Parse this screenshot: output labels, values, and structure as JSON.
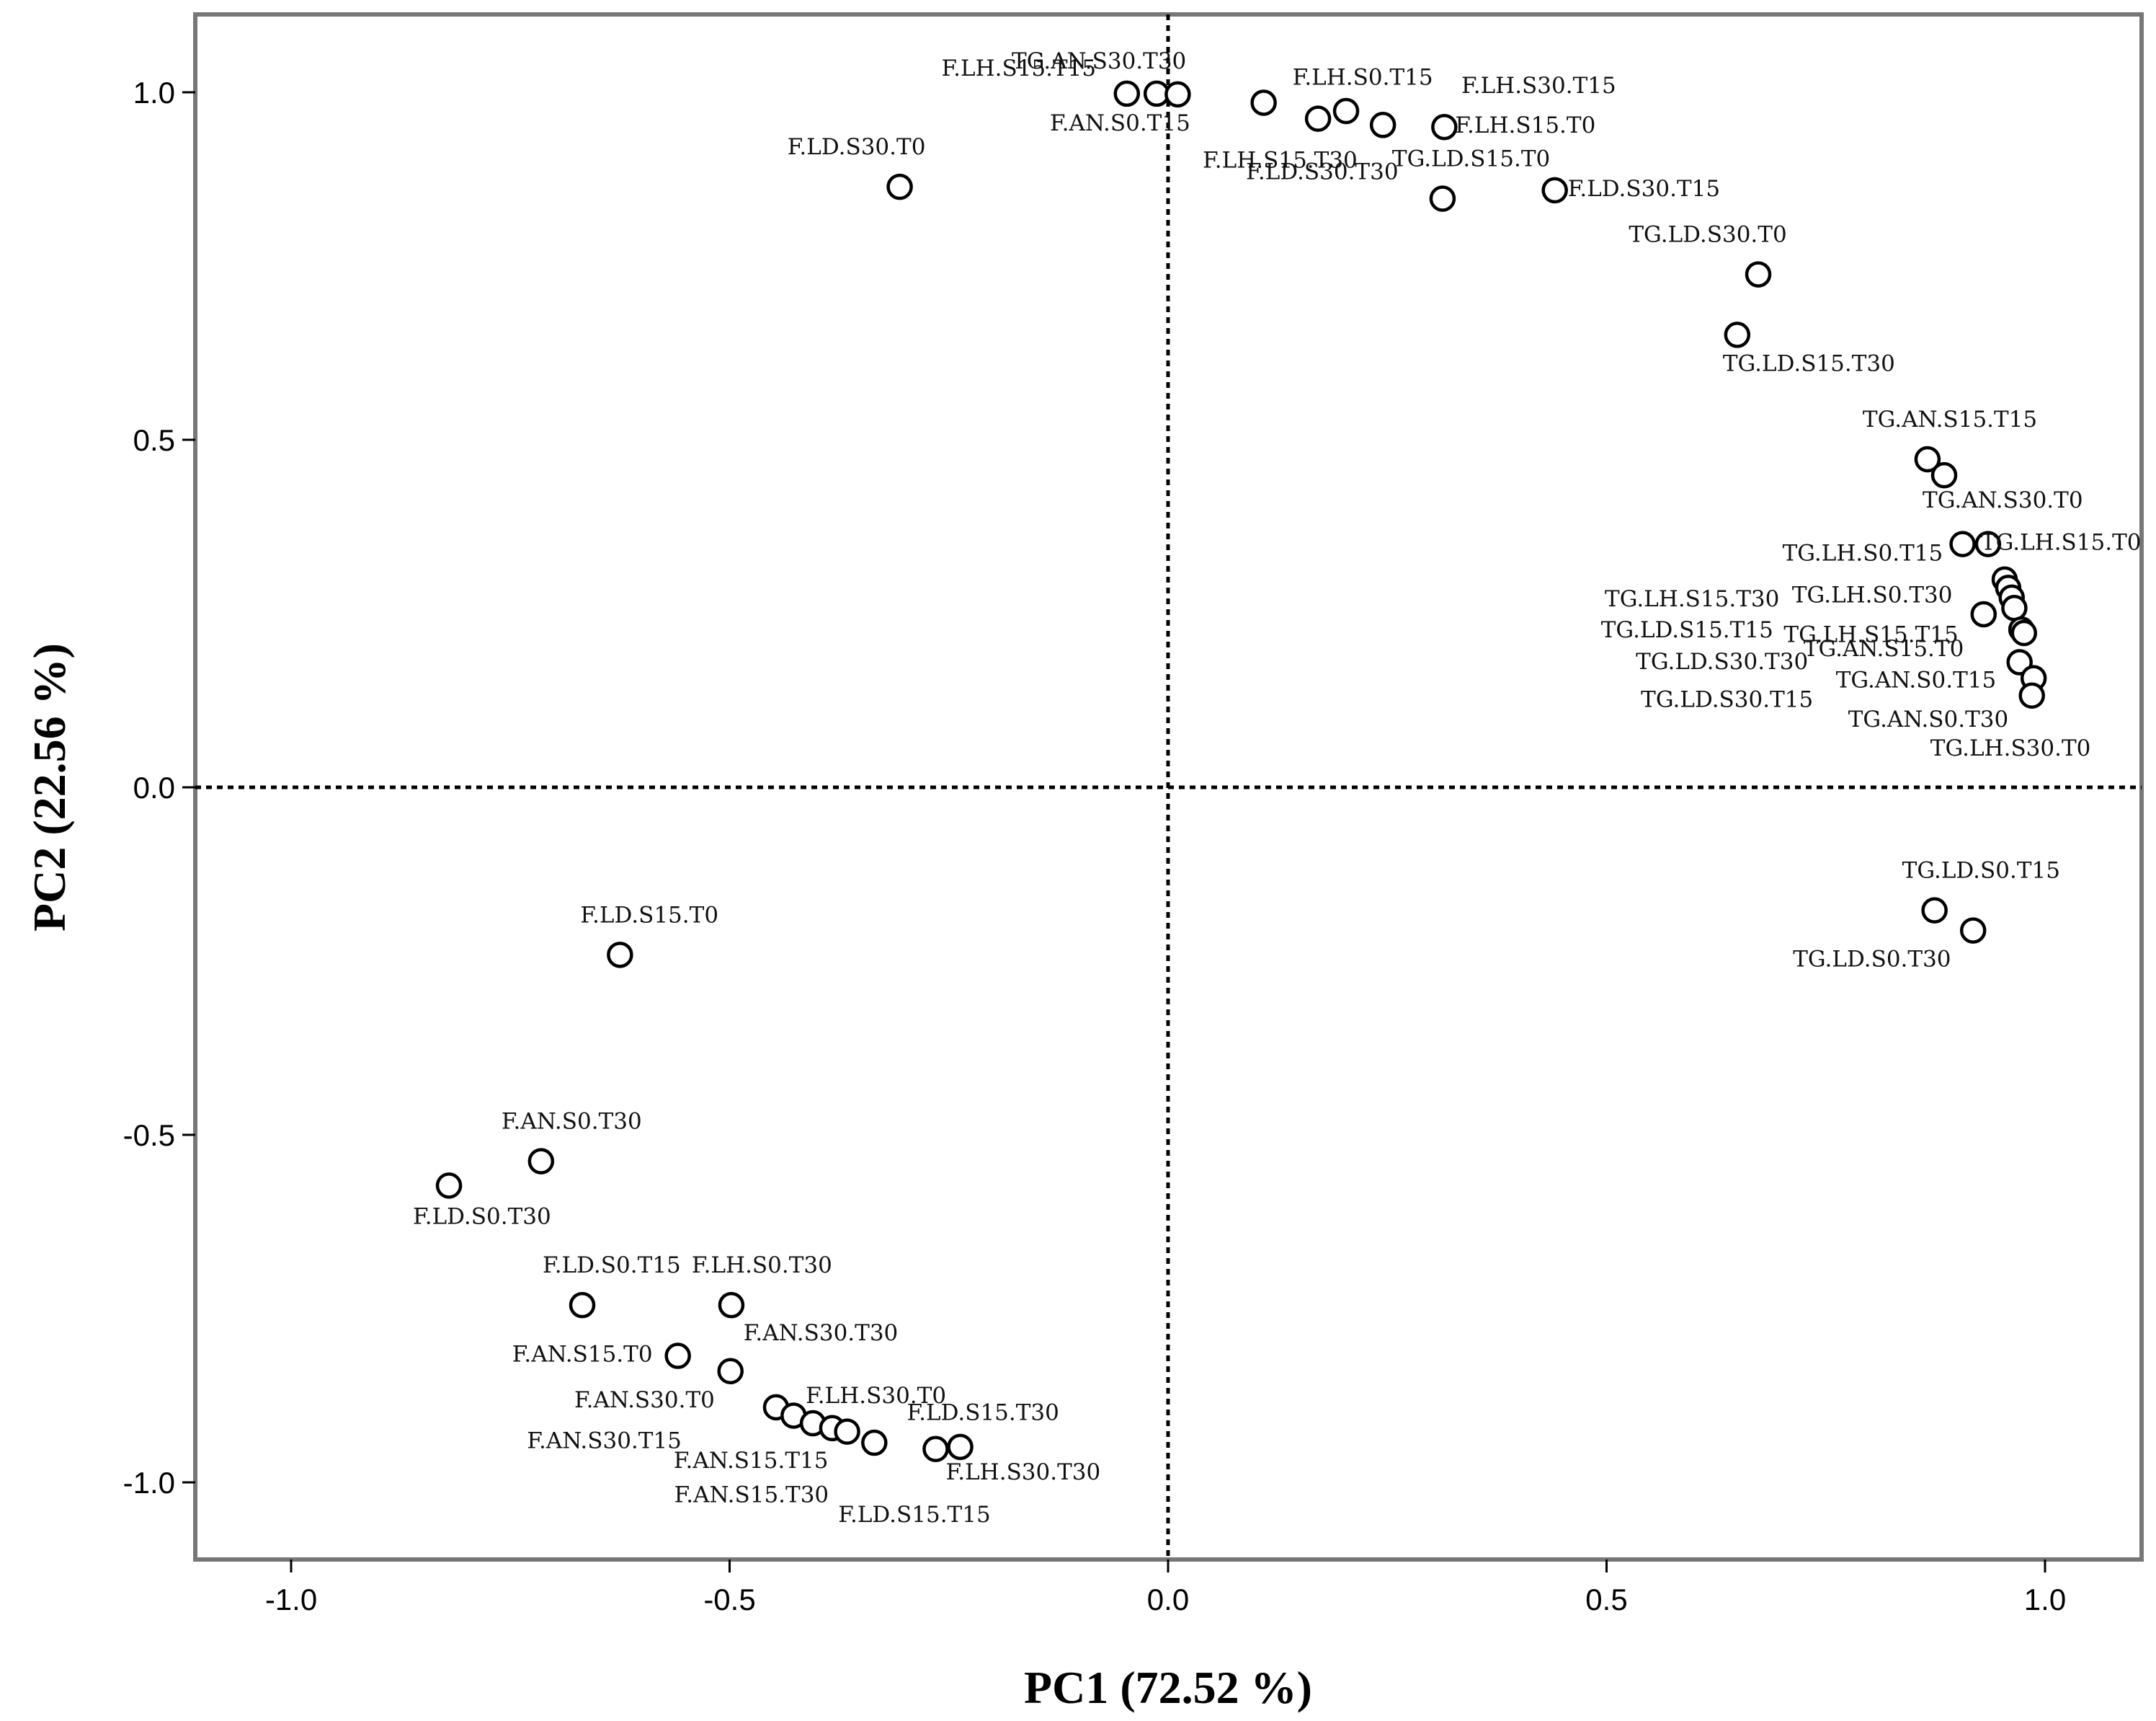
{
  "chart_data": {
    "type": "scatter",
    "title": "",
    "xlabel": "PC1 (72.52 %)",
    "ylabel": "PC2 (22.56 %)",
    "xlim": [
      -1.11,
      1.11
    ],
    "ylim": [
      -1.11,
      1.11
    ],
    "xticks": [
      -1.0,
      -0.5,
      0.0,
      0.5,
      1.0
    ],
    "xtick_labels": [
      "-1.0",
      "-0.5",
      "0.0",
      "0.5",
      "1.0"
    ],
    "yticks": [
      1.0,
      0.5,
      0.0,
      -0.5,
      -1.0
    ],
    "ytick_labels": [
      "1.0",
      "0.5",
      "0.0",
      "-0.5",
      "-1.0"
    ],
    "reference_lines": {
      "x": 0,
      "y": 0,
      "style": "dotted"
    },
    "grid": false,
    "legend": "none",
    "points": [
      {
        "label": "TG.AN.S30.T30",
        "x": -0.013,
        "y": 0.998
      },
      {
        "label": "F.LH.S15.T15",
        "x": -0.047,
        "y": 0.998
      },
      {
        "label": "F.AN.S0.T15",
        "x": 0.011,
        "y": 0.997
      },
      {
        "label": "F.LH.S0.T15",
        "x": 0.109,
        "y": 0.985
      },
      {
        "label": "F.LH.S15.T30",
        "x": 0.171,
        "y": 0.962
      },
      {
        "label": "F.LH.S30.T15",
        "x": 0.203,
        "y": 0.973
      },
      {
        "label": "F.LD.S30.T30",
        "x": 0.245,
        "y": 0.953
      },
      {
        "label": "F.LH.S15.T0",
        "x": 0.315,
        "y": 0.95
      },
      {
        "label": "TG.LD.S15.T0",
        "x": 0.313,
        "y": 0.847
      },
      {
        "label": "F.LD.S30.T15",
        "x": 0.441,
        "y": 0.859
      },
      {
        "label": "F.LD.S30.T0",
        "x": -0.306,
        "y": 0.864
      },
      {
        "label": "TG.LD.S30.T0",
        "x": 0.673,
        "y": 0.738
      },
      {
        "label": "TG.LD.S15.T30",
        "x": 0.649,
        "y": 0.651
      },
      {
        "label": "TG.AN.S15.T15",
        "x": 0.866,
        "y": 0.472
      },
      {
        "label": "TG.AN.S30.T0",
        "x": 0.885,
        "y": 0.449
      },
      {
        "label": "TG.LH.S0.T15",
        "x": 0.906,
        "y": 0.35
      },
      {
        "label": "TG.LH.S15.T0",
        "x": 0.935,
        "y": 0.35
      },
      {
        "label": "TG.LH.S15.T30",
        "x": 0.954,
        "y": 0.299
      },
      {
        "label": "TG.LH.S0.T30",
        "x": 0.958,
        "y": 0.287
      },
      {
        "label": "TG.LD.S15.T15",
        "x": 0.962,
        "y": 0.273
      },
      {
        "label": "TG.LH.S15.T15",
        "x": 0.965,
        "y": 0.258
      },
      {
        "label": "TG.AN.S15.T0",
        "x": 0.93,
        "y": 0.249
      },
      {
        "label": "TG.LD.S30.T30",
        "x": 0.973,
        "y": 0.227
      },
      {
        "label": "TG.AN.S0.T15",
        "x": 0.971,
        "y": 0.18
      },
      {
        "label": "TG.LD.S30.T15",
        "x": 0.987,
        "y": 0.157
      },
      {
        "label": "TG.AN.S0.T30",
        "x": 0.985,
        "y": 0.132
      },
      {
        "label": "TG.LH.S30.T0",
        "x": 0.976,
        "y": 0.222
      },
      {
        "label": "TG.LD.S0.T15",
        "x": 0.874,
        "y": -0.177
      },
      {
        "label": "TG.LD.S0.T30",
        "x": 0.918,
        "y": -0.206
      },
      {
        "label": "F.LD.S15.T0",
        "x": -0.625,
        "y": -0.241
      },
      {
        "label": "F.AN.S0.T30",
        "x": -0.715,
        "y": -0.538
      },
      {
        "label": "F.LD.S0.T30",
        "x": -0.82,
        "y": -0.573
      },
      {
        "label": "F.LD.S0.T15",
        "x": -0.668,
        "y": -0.745
      },
      {
        "label": "F.LH.S0.T30",
        "x": -0.498,
        "y": -0.745
      },
      {
        "label": "F.AN.S15.T0",
        "x": -0.559,
        "y": -0.818
      },
      {
        "label": "F.AN.S30.T30",
        "x": -0.499,
        "y": -0.84
      },
      {
        "label": "F.AN.S30.T0",
        "x": -0.447,
        "y": -0.892
      },
      {
        "label": "F.AN.S30.T15",
        "x": -0.427,
        "y": -0.904
      },
      {
        "label": "F.LH.S30.T0",
        "x": -0.405,
        "y": -0.915
      },
      {
        "label": "F.AN.S15.T15",
        "x": -0.383,
        "y": -0.922
      },
      {
        "label": "F.AN.S15.T30",
        "x": -0.366,
        "y": -0.927
      },
      {
        "label": "F.LD.S15.T15",
        "x": -0.335,
        "y": -0.943
      },
      {
        "label": "F.LD.S15.T30",
        "x": -0.265,
        "y": -0.952
      },
      {
        "label": "F.LH.S30.T30",
        "x": -0.237,
        "y": -0.949
      }
    ]
  }
}
